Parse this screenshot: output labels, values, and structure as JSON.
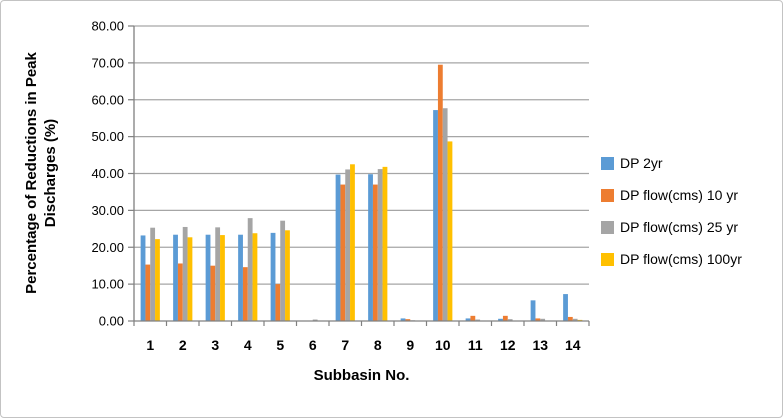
{
  "chart_data": {
    "type": "bar",
    "title": "",
    "xlabel": "Subbasin No.",
    "ylabel": "Percentage of Reductions in Peak Discharges (%)",
    "categories": [
      "1",
      "2",
      "3",
      "4",
      "5",
      "6",
      "7",
      "8",
      "9",
      "10",
      "11",
      "12",
      "13",
      "14"
    ],
    "series": [
      {
        "name": "DP 2yr",
        "color": "#5B9BD5",
        "values": [
          23.2,
          23.4,
          23.4,
          23.4,
          23.9,
          0,
          39.7,
          39.8,
          0.7,
          57.2,
          0.7,
          0.6,
          5.6,
          7.3
        ]
      },
      {
        "name": "DP flow(cms) 10 yr",
        "color": "#ED7D31",
        "values": [
          15.3,
          15.6,
          15.0,
          14.6,
          10.0,
          0,
          37.0,
          37.0,
          0.5,
          69.5,
          1.4,
          1.4,
          0.7,
          1.1
        ]
      },
      {
        "name": "DP flow(cms) 25 yr",
        "color": "#A5A5A5",
        "values": [
          25.3,
          25.5,
          25.4,
          27.9,
          27.2,
          0.4,
          41.1,
          41.2,
          0.2,
          57.7,
          0.4,
          0.5,
          0.6,
          0.6
        ]
      },
      {
        "name": "DP flow(cms) 100yr",
        "color": "#FFC000",
        "values": [
          22.2,
          22.7,
          23.3,
          23.8,
          24.6,
          0,
          42.5,
          41.8,
          0.1,
          48.7,
          0.1,
          0.1,
          0.1,
          0.3
        ]
      }
    ],
    "ylim": [
      0,
      80
    ],
    "ytick_step": 10,
    "ytick_labels": [
      "0.00",
      "10.00",
      "20.00",
      "30.00",
      "40.00",
      "50.00",
      "60.00",
      "70.00",
      "80.00"
    ],
    "grid": true,
    "legend_position": "right",
    "gridline_color": "#A6A6A6",
    "axis_color": "#808080",
    "text_color": "#000000"
  },
  "axes": {
    "x_title": "Subbasin No.",
    "y_title_line1": "Percentage of Reductions in Peak",
    "y_title_line2": "Discharges (%)"
  }
}
